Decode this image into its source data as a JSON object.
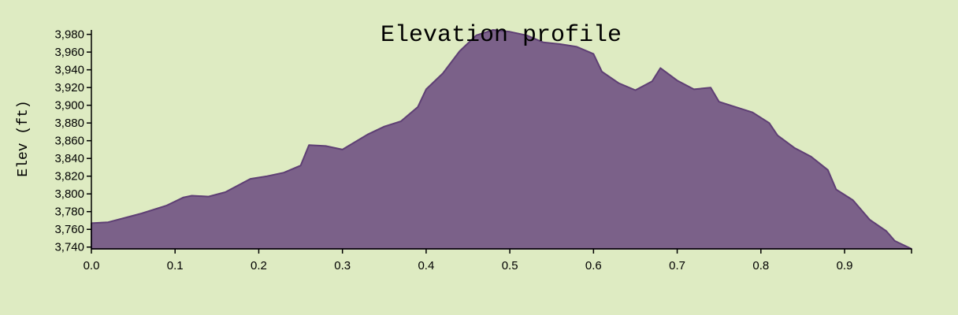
{
  "chart_data": {
    "type": "area",
    "title": "Elevation profile",
    "xlabel": "",
    "ylabel": "Elev (ft)",
    "xlim": [
      0,
      0.98
    ],
    "ylim": [
      3738,
      3985
    ],
    "x_ticks": [
      0.0,
      0.1,
      0.2,
      0.3,
      0.4,
      0.5,
      0.6,
      0.7,
      0.8,
      0.9
    ],
    "x_tick_labels": [
      "0.0",
      "0.1",
      "0.2",
      "0.3",
      "0.4",
      "0.5",
      "0.6",
      "0.7",
      "0.8",
      "0.9"
    ],
    "y_ticks": [
      3740,
      3760,
      3780,
      3800,
      3820,
      3840,
      3860,
      3880,
      3900,
      3920,
      3940,
      3960,
      3980
    ],
    "y_tick_labels": [
      "3,740",
      "3,760",
      "3,780",
      "3,800",
      "3,820",
      "3,840",
      "3,860",
      "3,880",
      "3,900",
      "3,920",
      "3,940",
      "3,960",
      "3,980"
    ],
    "grid": false,
    "fill_color": "#7b6189",
    "line_color": "#5e3f74",
    "x": [
      0.0,
      0.02,
      0.04,
      0.06,
      0.09,
      0.11,
      0.12,
      0.14,
      0.16,
      0.19,
      0.21,
      0.23,
      0.25,
      0.26,
      0.28,
      0.3,
      0.33,
      0.35,
      0.37,
      0.39,
      0.4,
      0.42,
      0.44,
      0.46,
      0.48,
      0.5,
      0.52,
      0.54,
      0.56,
      0.58,
      0.6,
      0.61,
      0.63,
      0.65,
      0.67,
      0.68,
      0.7,
      0.72,
      0.74,
      0.75,
      0.77,
      0.79,
      0.81,
      0.82,
      0.84,
      0.86,
      0.88,
      0.89,
      0.91,
      0.93,
      0.95,
      0.96,
      0.98
    ],
    "y": [
      3767,
      3768,
      3773,
      3778,
      3787,
      3796,
      3798,
      3797,
      3802,
      3817,
      3820,
      3824,
      3832,
      3855,
      3854,
      3850,
      3867,
      3876,
      3882,
      3898,
      3918,
      3936,
      3961,
      3979,
      3985,
      3983,
      3979,
      3971,
      3969,
      3966,
      3958,
      3938,
      3925,
      3917,
      3927,
      3942,
      3928,
      3918,
      3920,
      3904,
      3898,
      3892,
      3880,
      3866,
      3852,
      3842,
      3827,
      3805,
      3793,
      3771,
      3758,
      3747,
      3738
    ]
  }
}
